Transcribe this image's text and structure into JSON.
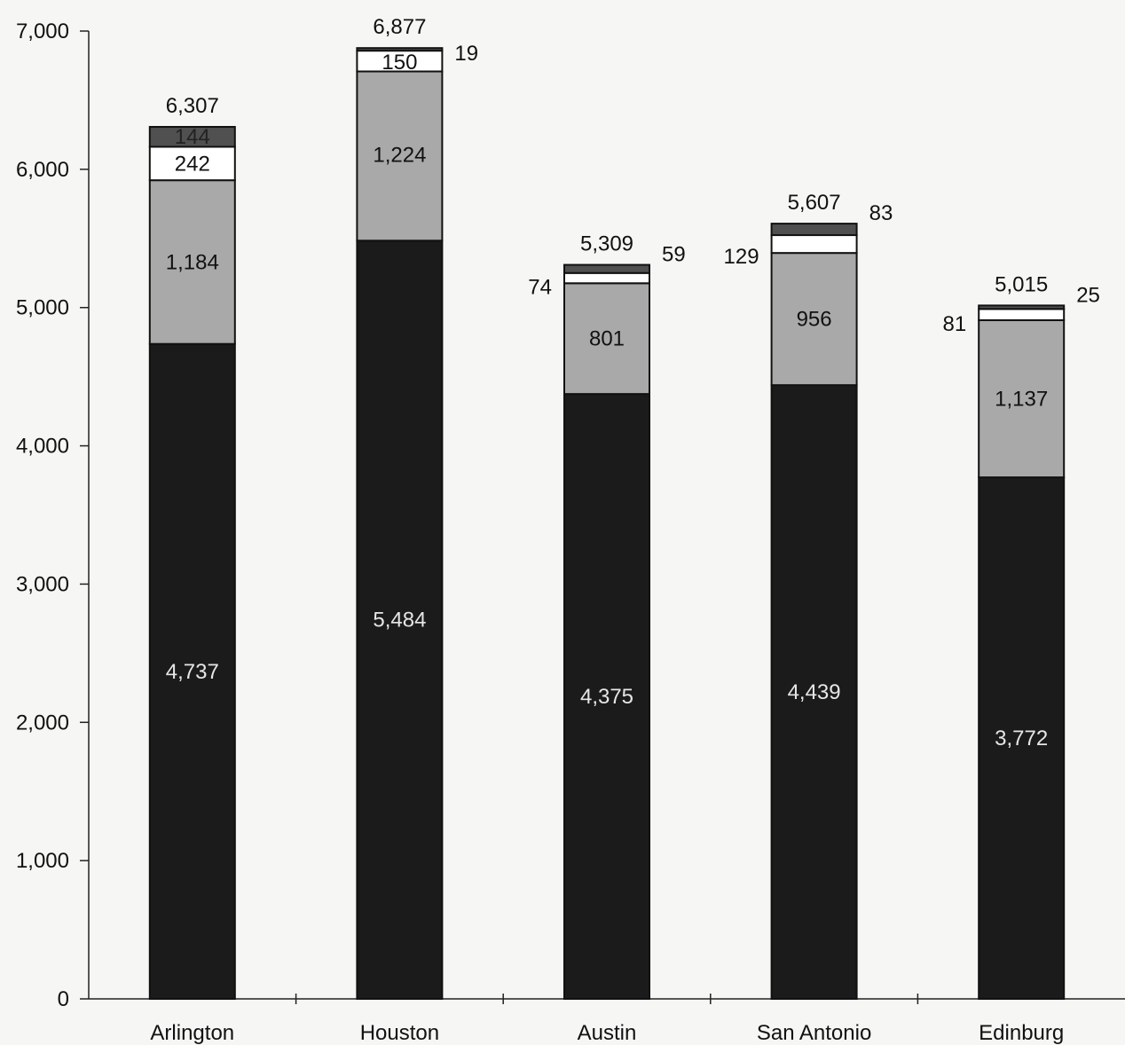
{
  "chart_data": {
    "type": "bar",
    "stacked": true,
    "categories": [
      "Arlington",
      "Houston",
      "Austin",
      "San Antonio",
      "Edinburg"
    ],
    "series": [
      {
        "values": [
          4737,
          5484,
          4375,
          4439,
          3772
        ],
        "color": "#1b1b1b"
      },
      {
        "values": [
          1184,
          1224,
          801,
          956,
          1137
        ],
        "color": "#a9a9a9"
      },
      {
        "values": [
          242,
          150,
          74,
          129,
          81
        ],
        "color": "#ffffff"
      },
      {
        "values": [
          144,
          19,
          59,
          83,
          25
        ],
        "color": "#505050"
      }
    ],
    "totals": [
      6307,
      6877,
      5309,
      5607,
      5015
    ],
    "yticks": [
      0,
      1000,
      2000,
      3000,
      4000,
      5000,
      6000,
      7000
    ],
    "ylim": [
      0,
      7000
    ],
    "title": "",
    "xlabel": "",
    "ylabel": "",
    "grid": false,
    "legend": "none"
  }
}
